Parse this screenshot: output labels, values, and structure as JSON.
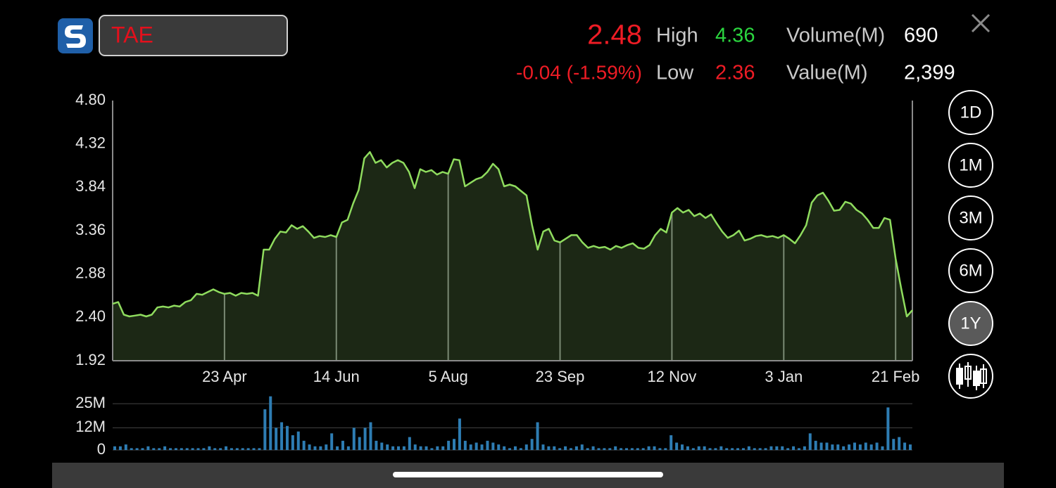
{
  "header": {
    "ticker": "TAE",
    "price": "2.48",
    "change": "-0.04 (-1.59%)",
    "high_label": "High",
    "high": "4.36",
    "low_label": "Low",
    "low": "2.36",
    "volume_label": "Volume(M)",
    "volume": "690",
    "value_label": "Value(M)",
    "value": "2,399"
  },
  "range_buttons": [
    "1D",
    "1M",
    "3M",
    "6M",
    "1Y"
  ],
  "selected_range": 4,
  "chart_data": [
    {
      "type": "line",
      "color": "#8fdc5e",
      "fill": "#1c2815",
      "categories": [
        null,
        null,
        null,
        null,
        null,
        null,
        null,
        null,
        null,
        null,
        null,
        null,
        null,
        null,
        null,
        null,
        null,
        null,
        null,
        null,
        "23 Apr",
        null,
        null,
        null,
        null,
        null,
        null,
        null,
        null,
        null,
        null,
        null,
        null,
        null,
        null,
        null,
        null,
        null,
        null,
        null,
        "14 Jun",
        null,
        null,
        null,
        null,
        null,
        null,
        null,
        null,
        null,
        null,
        null,
        null,
        null,
        null,
        null,
        null,
        null,
        null,
        null,
        "5 Aug",
        null,
        null,
        null,
        null,
        null,
        null,
        null,
        null,
        null,
        null,
        null,
        null,
        null,
        null,
        null,
        null,
        null,
        null,
        null,
        "23 Sep",
        null,
        null,
        null,
        null,
        null,
        null,
        null,
        null,
        null,
        null,
        null,
        null,
        null,
        null,
        null,
        null,
        null,
        null,
        null,
        "12 Nov",
        null,
        null,
        null,
        null,
        null,
        null,
        null,
        null,
        null,
        null,
        null,
        null,
        null,
        null,
        null,
        null,
        null,
        null,
        null,
        "3 Jan",
        null,
        null,
        null,
        null,
        null,
        null,
        null,
        null,
        null,
        null,
        null,
        null,
        null,
        null,
        null,
        null,
        null,
        null,
        null,
        "21 Feb",
        null,
        null,
        null
      ],
      "values": [
        2.55,
        2.57,
        2.43,
        2.41,
        2.42,
        2.43,
        2.41,
        2.43,
        2.51,
        2.52,
        2.51,
        2.53,
        2.52,
        2.57,
        2.59,
        2.66,
        2.65,
        2.68,
        2.71,
        2.68,
        2.66,
        2.67,
        2.64,
        2.67,
        2.66,
        2.67,
        2.64,
        3.15,
        3.15,
        3.27,
        3.35,
        3.34,
        3.42,
        3.38,
        3.41,
        3.35,
        3.28,
        3.3,
        3.29,
        3.31,
        3.29,
        3.45,
        3.48,
        3.66,
        3.81,
        4.16,
        4.23,
        4.11,
        4.14,
        4.06,
        4.11,
        4.14,
        4.11,
        4.01,
        3.83,
        4.04,
        4.01,
        4.03,
        3.98,
        4.01,
        3.99,
        4.15,
        4.14,
        3.85,
        3.89,
        3.93,
        3.95,
        4.01,
        4.1,
        4.04,
        3.85,
        3.87,
        3.85,
        3.8,
        3.75,
        3.42,
        3.15,
        3.35,
        3.38,
        3.25,
        3.23,
        3.27,
        3.31,
        3.31,
        3.23,
        3.17,
        3.19,
        3.17,
        3.18,
        3.15,
        3.19,
        3.17,
        3.2,
        3.22,
        3.17,
        3.16,
        3.2,
        3.31,
        3.38,
        3.34,
        3.56,
        3.61,
        3.56,
        3.59,
        3.52,
        3.55,
        3.5,
        3.54,
        3.44,
        3.35,
        3.28,
        3.31,
        3.36,
        3.25,
        3.27,
        3.3,
        3.31,
        3.29,
        3.3,
        3.28,
        3.31,
        3.27,
        3.22,
        3.31,
        3.42,
        3.67,
        3.75,
        3.78,
        3.69,
        3.58,
        3.59,
        3.68,
        3.66,
        3.59,
        3.55,
        3.48,
        3.39,
        3.39,
        3.5,
        3.48,
        3.05,
        2.72,
        2.41,
        2.48
      ],
      "ylim": [
        1.92,
        4.8
      ],
      "yticks": [
        {
          "value": 4.8,
          "label": "4.80"
        },
        4.32,
        3.84,
        3.36,
        2.88,
        {
          "value": 2.4,
          "label": "2.40"
        },
        1.92
      ]
    },
    {
      "type": "bar",
      "color": "#2e7db3",
      "values": [
        2,
        2,
        3,
        1,
        1,
        1,
        2,
        1,
        1,
        2,
        1,
        1,
        1,
        1,
        1,
        1,
        1,
        2,
        1,
        1,
        2,
        1,
        1,
        1,
        1,
        1,
        1,
        22,
        29,
        12,
        15,
        13,
        8,
        10,
        5,
        3,
        2,
        2,
        3,
        9,
        2,
        5,
        2,
        12,
        7,
        12,
        15,
        5,
        4,
        3,
        2,
        2,
        2,
        7,
        3,
        2,
        2,
        1,
        2,
        2,
        5,
        6,
        17,
        5,
        3,
        4,
        3,
        5,
        4,
        3,
        2,
        1,
        2,
        1,
        3,
        6,
        15,
        3,
        2,
        2,
        1,
        2,
        1,
        2,
        3,
        1,
        2,
        1,
        1,
        1,
        2,
        1,
        1,
        1,
        1,
        1,
        2,
        2,
        1,
        1,
        8,
        4,
        3,
        2,
        1,
        2,
        2,
        1,
        1,
        2,
        1,
        1,
        1,
        1,
        2,
        1,
        1,
        1,
        2,
        2,
        2,
        1,
        2,
        1,
        2,
        9,
        5,
        4,
        4,
        3,
        3,
        2,
        3,
        4,
        3,
        4,
        3,
        4,
        2,
        23,
        6,
        7,
        4,
        3
      ],
      "ylim": [
        0,
        30
      ],
      "yticks": [
        {
          "value": 25,
          "label": "25M"
        },
        {
          "value": 12,
          "label": "12M"
        },
        0
      ]
    }
  ]
}
